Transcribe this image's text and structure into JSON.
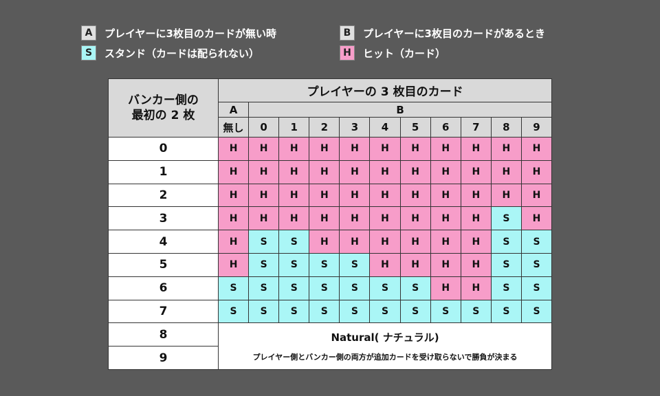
{
  "legend": [
    {
      "badge": "A",
      "text": "プレイヤーに3枚目のカードが無い時",
      "style": "gray"
    },
    {
      "badge": "B",
      "text": "プレイヤーに3枚目のカードがあるとき",
      "style": "gray"
    },
    {
      "badge": "S",
      "text": "スタンド（カードは配られない）",
      "style": "s"
    },
    {
      "badge": "H",
      "text": "ヒット（カード）",
      "style": "h"
    }
  ],
  "table": {
    "banker_header_line1": "バンカー側の",
    "banker_header_line2": "最初の 2 枚",
    "player_header": "プレイヤーの 3 枚目のカード",
    "group_a": "A",
    "group_b": "B",
    "columns": [
      "無し",
      "0",
      "1",
      "2",
      "3",
      "4",
      "5",
      "6",
      "7",
      "8",
      "9"
    ],
    "rows": [
      {
        "banker": "0",
        "cells": [
          "H",
          "H",
          "H",
          "H",
          "H",
          "H",
          "H",
          "H",
          "H",
          "H",
          "H"
        ]
      },
      {
        "banker": "1",
        "cells": [
          "H",
          "H",
          "H",
          "H",
          "H",
          "H",
          "H",
          "H",
          "H",
          "H",
          "H"
        ]
      },
      {
        "banker": "2",
        "cells": [
          "H",
          "H",
          "H",
          "H",
          "H",
          "H",
          "H",
          "H",
          "H",
          "H",
          "H"
        ]
      },
      {
        "banker": "3",
        "cells": [
          "H",
          "H",
          "H",
          "H",
          "H",
          "H",
          "H",
          "H",
          "H",
          "S",
          "H"
        ]
      },
      {
        "banker": "4",
        "cells": [
          "H",
          "S",
          "S",
          "H",
          "H",
          "H",
          "H",
          "H",
          "H",
          "S",
          "S"
        ]
      },
      {
        "banker": "5",
        "cells": [
          "H",
          "S",
          "S",
          "S",
          "S",
          "H",
          "H",
          "H",
          "H",
          "S",
          "S"
        ]
      },
      {
        "banker": "6",
        "cells": [
          "S",
          "S",
          "S",
          "S",
          "S",
          "S",
          "S",
          "H",
          "H",
          "S",
          "S"
        ]
      },
      {
        "banker": "7",
        "cells": [
          "S",
          "S",
          "S",
          "S",
          "S",
          "S",
          "S",
          "S",
          "S",
          "S",
          "S"
        ]
      }
    ],
    "natural_rows": [
      "8",
      "9"
    ],
    "natural_title": "Natural( ナチュラル)",
    "natural_note": "プレイヤー側とバンカー側の両方が追加カードを受け取らないで勝負が決まる"
  },
  "colors": {
    "background": "#5a5a5a",
    "stand": "#aaf6f6",
    "hit": "#f79dc9",
    "header": "#d9d9d9"
  }
}
